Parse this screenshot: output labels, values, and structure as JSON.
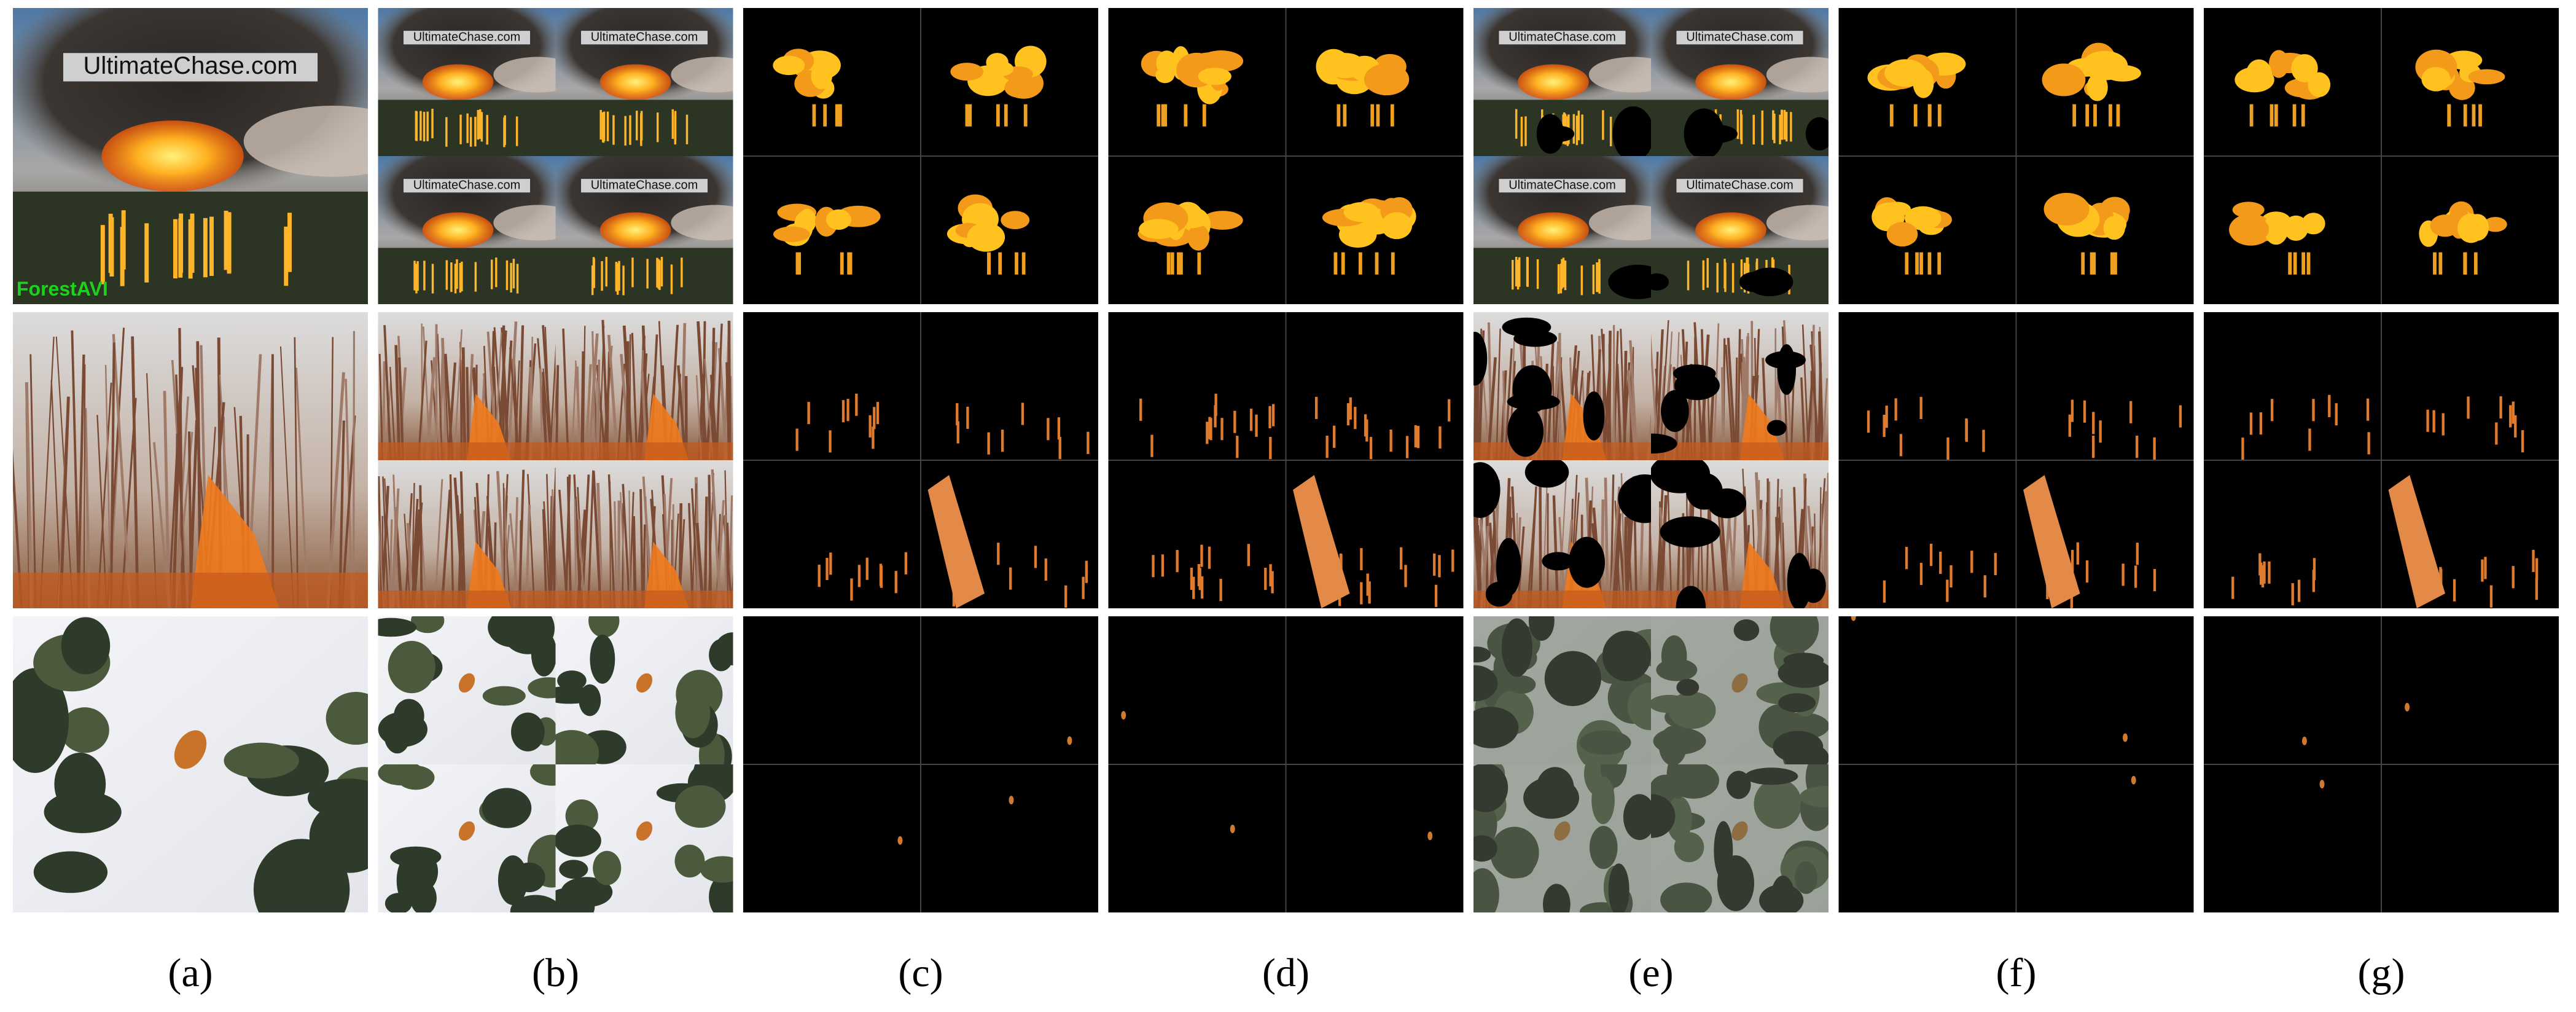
{
  "figure": {
    "watermark": "UltimateChase.com",
    "source_label": "ForestAVI",
    "captions": [
      "(a)",
      "(b)",
      "(c)",
      "(d)",
      "(e)",
      "(f)",
      "(g)"
    ]
  }
}
